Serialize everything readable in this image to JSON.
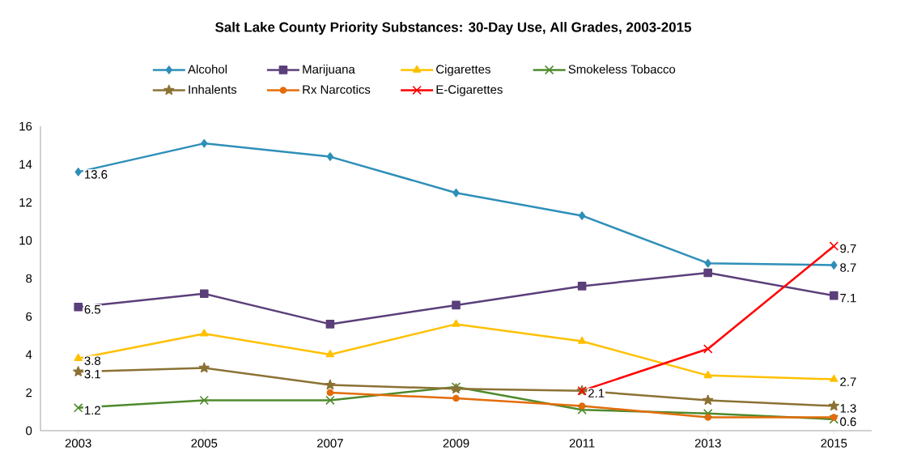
{
  "chart_data": {
    "type": "line",
    "title": "Salt Lake County Priority Substances: 30-Day Use, All Grades, 2003-2015",
    "categories": [
      "2003",
      "2005",
      "2007",
      "2009",
      "2011",
      "2013",
      "2015"
    ],
    "series": [
      {
        "name": "Alcohol",
        "color": "#2e8fb8",
        "marker": "diamond",
        "values": [
          13.6,
          15.1,
          14.4,
          12.5,
          11.3,
          8.8,
          8.7
        ],
        "value_labels": [
          "13.6",
          null,
          null,
          null,
          null,
          null,
          "8.7"
        ]
      },
      {
        "name": "Marijuana",
        "color": "#5b3f7a",
        "marker": "square",
        "values": [
          6.5,
          7.2,
          5.6,
          6.6,
          7.6,
          8.3,
          7.1
        ],
        "value_labels": [
          "6.5",
          null,
          null,
          null,
          null,
          null,
          "7.1"
        ]
      },
      {
        "name": "Cigarettes",
        "color": "#ffc000",
        "marker": "triangle",
        "values": [
          3.8,
          5.1,
          4.0,
          5.6,
          4.7,
          2.9,
          2.7
        ],
        "value_labels": [
          "3.8",
          null,
          null,
          null,
          null,
          null,
          "2.7"
        ]
      },
      {
        "name": "Smokeless Tobacco",
        "color": "#4e8a2c",
        "marker": "cross",
        "values": [
          1.2,
          1.6,
          1.6,
          2.3,
          1.1,
          0.9,
          0.6
        ],
        "value_labels": [
          "1.2",
          null,
          null,
          null,
          null,
          null,
          "0.6"
        ]
      },
      {
        "name": "Inhalents",
        "color": "#8b7234",
        "marker": "star",
        "values": [
          3.1,
          3.3,
          2.4,
          2.2,
          2.1,
          1.6,
          1.3
        ],
        "value_labels": [
          "3.1",
          null,
          null,
          null,
          null,
          null,
          "1.3"
        ]
      },
      {
        "name": "Rx Narcotics",
        "color": "#e36c0a",
        "marker": "circle",
        "values": [
          null,
          null,
          2.0,
          1.7,
          1.3,
          0.7,
          0.7
        ]
      },
      {
        "name": "E-Cigarettes",
        "color": "#ff0000",
        "marker": "cross",
        "values": [
          null,
          null,
          null,
          null,
          2.1,
          4.3,
          9.7
        ],
        "value_labels": [
          null,
          null,
          null,
          null,
          "2.1",
          null,
          "9.7"
        ]
      }
    ],
    "ylim": [
      0,
      16
    ],
    "yticks": [
      0,
      2,
      4,
      6,
      8,
      10,
      12,
      14,
      16
    ],
    "legend": "top",
    "line_style": "solid"
  }
}
